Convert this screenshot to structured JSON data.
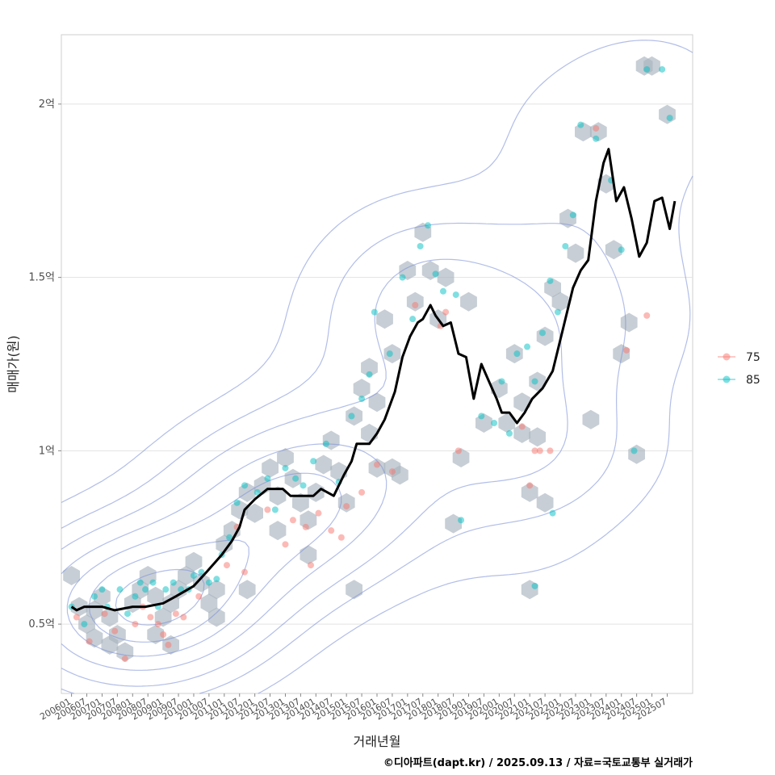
{
  "chart_data": {
    "type": "scatter",
    "title": "",
    "xlabel": "거래년월",
    "ylabel": "매매가(원)",
    "x_tick_labels": [
      "200601",
      "200607",
      "200701",
      "200707",
      "200801",
      "200807",
      "200901",
      "200907",
      "201001",
      "201007",
      "201101",
      "201107",
      "201201",
      "201207",
      "201301",
      "201307",
      "201401",
      "201407",
      "201501",
      "201507",
      "201601",
      "201607",
      "201701",
      "201707",
      "201801",
      "201807",
      "201901",
      "201907",
      "202001",
      "202007",
      "202101",
      "202107",
      "202201",
      "202207",
      "202301",
      "202307",
      "202401",
      "202407",
      "202501",
      "202507"
    ],
    "x_range": [
      "2005-09",
      "2026-05"
    ],
    "y_ticks": [
      {
        "value": 0.5,
        "label": "0.5억"
      },
      {
        "value": 1.0,
        "label": "1억"
      },
      {
        "value": 1.5,
        "label": "1.5억"
      },
      {
        "value": 2.0,
        "label": "2억"
      }
    ],
    "y_unit": "억",
    "ylim": [
      0.3,
      2.2
    ],
    "grid": "horizontal",
    "legend_position": "right",
    "series": [
      {
        "name": "75",
        "color": "#F8766D",
        "points": [
          [
            "2006-03",
            0.52
          ],
          [
            "2006-08",
            0.45
          ],
          [
            "2007-02",
            0.53
          ],
          [
            "2007-06",
            0.48
          ],
          [
            "2007-10",
            0.4
          ],
          [
            "2008-02",
            0.5
          ],
          [
            "2008-05",
            0.55
          ],
          [
            "2008-08",
            0.52
          ],
          [
            "2008-11",
            0.5
          ],
          [
            "2009-01",
            0.47
          ],
          [
            "2009-03",
            0.44
          ],
          [
            "2009-06",
            0.53
          ],
          [
            "2009-09",
            0.52
          ],
          [
            "2010-03",
            0.58
          ],
          [
            "2011-02",
            0.67
          ],
          [
            "2011-06",
            0.78
          ],
          [
            "2011-09",
            0.65
          ],
          [
            "2012-06",
            0.83
          ],
          [
            "2013-01",
            0.73
          ],
          [
            "2013-04",
            0.8
          ],
          [
            "2013-09",
            0.78
          ],
          [
            "2013-11",
            0.67
          ],
          [
            "2014-02",
            0.82
          ],
          [
            "2014-07",
            0.77
          ],
          [
            "2014-11",
            0.75
          ],
          [
            "2015-01",
            0.84
          ],
          [
            "2015-07",
            0.88
          ],
          [
            "2016-01",
            0.96
          ],
          [
            "2016-07",
            0.94
          ],
          [
            "2017-04",
            1.42
          ],
          [
            "2018-02",
            1.36
          ],
          [
            "2018-04",
            1.4
          ],
          [
            "2018-09",
            1.0
          ],
          [
            "2020-10",
            1.07
          ],
          [
            "2021-01",
            0.9
          ],
          [
            "2021-03",
            1.0
          ],
          [
            "2021-05",
            1.0
          ],
          [
            "2021-09",
            1.0
          ],
          [
            "2023-03",
            1.93
          ],
          [
            "2024-03",
            1.29
          ],
          [
            "2024-11",
            1.39
          ]
        ]
      },
      {
        "name": "85",
        "color": "#00BFC4",
        "points": [
          [
            "2006-01",
            0.55
          ],
          [
            "2006-06",
            0.5
          ],
          [
            "2006-10",
            0.58
          ],
          [
            "2007-01",
            0.6
          ],
          [
            "2007-03",
            0.55
          ],
          [
            "2007-08",
            0.6
          ],
          [
            "2007-11",
            0.53
          ],
          [
            "2008-02",
            0.58
          ],
          [
            "2008-04",
            0.62
          ],
          [
            "2008-06",
            0.6
          ],
          [
            "2008-09",
            0.62
          ],
          [
            "2008-11",
            0.55
          ],
          [
            "2009-02",
            0.6
          ],
          [
            "2009-05",
            0.62
          ],
          [
            "2009-08",
            0.6
          ],
          [
            "2009-11",
            0.6
          ],
          [
            "2010-01",
            0.64
          ],
          [
            "2010-04",
            0.65
          ],
          [
            "2010-07",
            0.62
          ],
          [
            "2010-10",
            0.63
          ],
          [
            "2010-12",
            0.7
          ],
          [
            "2011-03",
            0.75
          ],
          [
            "2011-06",
            0.85
          ],
          [
            "2011-09",
            0.9
          ],
          [
            "2012-02",
            0.88
          ],
          [
            "2012-06",
            0.92
          ],
          [
            "2012-09",
            0.83
          ],
          [
            "2013-01",
            0.95
          ],
          [
            "2013-05",
            0.92
          ],
          [
            "2013-08",
            0.9
          ],
          [
            "2013-12",
            0.97
          ],
          [
            "2014-05",
            1.02
          ],
          [
            "2014-10",
            0.91
          ],
          [
            "2015-03",
            1.1
          ],
          [
            "2015-07",
            1.15
          ],
          [
            "2015-10",
            1.22
          ],
          [
            "2015-12",
            1.4
          ],
          [
            "2016-06",
            1.28
          ],
          [
            "2016-11",
            1.5
          ],
          [
            "2017-03",
            1.38
          ],
          [
            "2017-06",
            1.59
          ],
          [
            "2017-09",
            1.65
          ],
          [
            "2017-12",
            1.51
          ],
          [
            "2018-03",
            1.46
          ],
          [
            "2018-08",
            1.45
          ],
          [
            "2018-10",
            0.8
          ],
          [
            "2019-06",
            1.1
          ],
          [
            "2019-11",
            1.08
          ],
          [
            "2020-02",
            1.2
          ],
          [
            "2020-05",
            1.05
          ],
          [
            "2020-08",
            1.28
          ],
          [
            "2020-12",
            1.3
          ],
          [
            "2021-03",
            1.2
          ],
          [
            "2021-06",
            1.34
          ],
          [
            "2021-09",
            1.49
          ],
          [
            "2021-12",
            1.4
          ],
          [
            "2022-03",
            1.59
          ],
          [
            "2022-06",
            1.68
          ],
          [
            "2022-09",
            1.94
          ],
          [
            "2023-03",
            1.9
          ],
          [
            "2023-09",
            1.78
          ],
          [
            "2024-01",
            1.58
          ],
          [
            "2024-06",
            1.0
          ],
          [
            "2024-11",
            2.1
          ],
          [
            "2025-05",
            2.1
          ],
          [
            "2025-08",
            1.96
          ],
          [
            "2021-03",
            0.61
          ],
          [
            "2021-10",
            0.82
          ]
        ]
      }
    ],
    "hexbin_centers": [
      [
        "2006-01",
        0.64
      ],
      [
        "2006-04",
        0.55
      ],
      [
        "2006-07",
        0.5
      ],
      [
        "2006-10",
        0.54
      ],
      [
        "2007-01",
        0.58
      ],
      [
        "2007-04",
        0.52
      ],
      [
        "2007-07",
        0.47
      ],
      [
        "2007-10",
        0.42
      ],
      [
        "2008-01",
        0.56
      ],
      [
        "2008-04",
        0.6
      ],
      [
        "2008-07",
        0.64
      ],
      [
        "2008-10",
        0.58
      ],
      [
        "2009-01",
        0.52
      ],
      [
        "2009-04",
        0.56
      ],
      [
        "2009-07",
        0.6
      ],
      [
        "2009-10",
        0.64
      ],
      [
        "2010-01",
        0.68
      ],
      [
        "2010-04",
        0.62
      ],
      [
        "2010-07",
        0.56
      ],
      [
        "2010-10",
        0.6
      ],
      [
        "2011-01",
        0.73
      ],
      [
        "2011-04",
        0.77
      ],
      [
        "2011-07",
        0.83
      ],
      [
        "2011-10",
        0.88
      ],
      [
        "2012-01",
        0.82
      ],
      [
        "2012-04",
        0.9
      ],
      [
        "2012-07",
        0.95
      ],
      [
        "2012-10",
        0.87
      ],
      [
        "2013-01",
        0.98
      ],
      [
        "2013-04",
        0.92
      ],
      [
        "2013-07",
        0.85
      ],
      [
        "2013-10",
        0.8
      ],
      [
        "2014-01",
        0.88
      ],
      [
        "2014-04",
        0.96
      ],
      [
        "2014-07",
        1.03
      ],
      [
        "2014-10",
        0.94
      ],
      [
        "2015-01",
        0.85
      ],
      [
        "2015-04",
        1.1
      ],
      [
        "2015-07",
        1.18
      ],
      [
        "2015-10",
        1.24
      ],
      [
        "2016-01",
        0.95
      ],
      [
        "2016-04",
        1.38
      ],
      [
        "2016-07",
        1.28
      ],
      [
        "2016-10",
        0.93
      ],
      [
        "2017-01",
        1.52
      ],
      [
        "2017-04",
        1.43
      ],
      [
        "2017-07",
        1.63
      ],
      [
        "2017-10",
        1.52
      ],
      [
        "2018-01",
        1.38
      ],
      [
        "2018-04",
        1.5
      ],
      [
        "2018-10",
        0.98
      ],
      [
        "2019-01",
        1.43
      ],
      [
        "2019-07",
        1.08
      ],
      [
        "2020-01",
        1.18
      ],
      [
        "2020-04",
        1.08
      ],
      [
        "2020-07",
        1.28
      ],
      [
        "2020-10",
        1.14
      ],
      [
        "2021-01",
        0.88
      ],
      [
        "2021-04",
        1.04
      ],
      [
        "2021-07",
        1.33
      ],
      [
        "2021-10",
        1.47
      ],
      [
        "2022-01",
        1.43
      ],
      [
        "2022-04",
        1.67
      ],
      [
        "2022-07",
        1.57
      ],
      [
        "2022-10",
        1.92
      ],
      [
        "2023-01",
        1.09
      ],
      [
        "2023-04",
        1.92
      ],
      [
        "2023-07",
        1.77
      ],
      [
        "2023-10",
        1.58
      ],
      [
        "2024-01",
        1.28
      ],
      [
        "2024-04",
        1.37
      ],
      [
        "2024-07",
        0.99
      ],
      [
        "2024-10",
        2.11
      ],
      [
        "2025-01",
        2.11
      ],
      [
        "2025-07",
        1.97
      ],
      [
        "2006-10",
        0.46
      ],
      [
        "2007-04",
        0.44
      ],
      [
        "2008-10",
        0.47
      ],
      [
        "2009-04",
        0.44
      ],
      [
        "2010-10",
        0.52
      ],
      [
        "2011-10",
        0.6
      ],
      [
        "2012-10",
        0.77
      ],
      [
        "2013-10",
        0.7
      ],
      [
        "2015-04",
        0.6
      ],
      [
        "2016-07",
        0.95
      ],
      [
        "2018-07",
        0.79
      ],
      [
        "2021-01",
        0.6
      ],
      [
        "2021-07",
        0.85
      ],
      [
        "2021-04",
        1.2
      ],
      [
        "2020-10",
        1.05
      ],
      [
        "2016-01",
        1.14
      ],
      [
        "2015-10",
        1.05
      ]
    ],
    "median_line": [
      [
        "2006-01",
        0.55
      ],
      [
        "2006-03",
        0.54
      ],
      [
        "2006-06",
        0.55
      ],
      [
        "2007-01",
        0.55
      ],
      [
        "2007-06",
        0.54
      ],
      [
        "2008-01",
        0.55
      ],
      [
        "2008-06",
        0.55
      ],
      [
        "2009-01",
        0.56
      ],
      [
        "2009-06",
        0.58
      ],
      [
        "2010-01",
        0.61
      ],
      [
        "2010-06",
        0.65
      ],
      [
        "2010-12",
        0.7
      ],
      [
        "2011-04",
        0.74
      ],
      [
        "2011-07",
        0.78
      ],
      [
        "2011-09",
        0.83
      ],
      [
        "2012-01",
        0.86
      ],
      [
        "2012-06",
        0.89
      ],
      [
        "2012-12",
        0.89
      ],
      [
        "2013-03",
        0.87
      ],
      [
        "2013-06",
        0.87
      ],
      [
        "2013-12",
        0.87
      ],
      [
        "2014-03",
        0.89
      ],
      [
        "2014-08",
        0.87
      ],
      [
        "2014-12",
        0.93
      ],
      [
        "2015-03",
        0.97
      ],
      [
        "2015-05",
        1.02
      ],
      [
        "2015-10",
        1.02
      ],
      [
        "2016-01",
        1.05
      ],
      [
        "2016-04",
        1.09
      ],
      [
        "2016-08",
        1.17
      ],
      [
        "2016-11",
        1.27
      ],
      [
        "2017-02",
        1.33
      ],
      [
        "2017-05",
        1.37
      ],
      [
        "2017-07",
        1.38
      ],
      [
        "2017-10",
        1.42
      ],
      [
        "2017-12",
        1.39
      ],
      [
        "2018-03",
        1.36
      ],
      [
        "2018-06",
        1.37
      ],
      [
        "2018-09",
        1.28
      ],
      [
        "2018-12",
        1.27
      ],
      [
        "2019-03",
        1.15
      ],
      [
        "2019-06",
        1.25
      ],
      [
        "2019-09",
        1.2
      ],
      [
        "2019-12",
        1.15
      ],
      [
        "2020-02",
        1.11
      ],
      [
        "2020-05",
        1.11
      ],
      [
        "2020-08",
        1.08
      ],
      [
        "2020-11",
        1.11
      ],
      [
        "2021-02",
        1.15
      ],
      [
        "2021-06",
        1.18
      ],
      [
        "2021-10",
        1.23
      ],
      [
        "2022-02",
        1.35
      ],
      [
        "2022-06",
        1.47
      ],
      [
        "2022-09",
        1.52
      ],
      [
        "2022-12",
        1.55
      ],
      [
        "2023-03",
        1.72
      ],
      [
        "2023-06",
        1.83
      ],
      [
        "2023-08",
        1.87
      ],
      [
        "2023-11",
        1.72
      ],
      [
        "2024-02",
        1.76
      ],
      [
        "2024-05",
        1.67
      ],
      [
        "2024-08",
        1.56
      ],
      [
        "2024-11",
        1.6
      ],
      [
        "2025-02",
        1.72
      ],
      [
        "2025-05",
        1.73
      ],
      [
        "2025-08",
        1.64
      ],
      [
        "2025-10",
        1.72
      ]
    ],
    "density_contours": "blue 2D-density contour lines"
  },
  "colors": {
    "series_75": "#F8766D",
    "series_85": "#00BFC4",
    "hex_fill": "#A9B4BE",
    "contour": "#7F93D9",
    "median": "#000000"
  },
  "caption": "©디아파트(dapt.kr) / 2025.09.13 / 자료=국토교통부 실거래가"
}
